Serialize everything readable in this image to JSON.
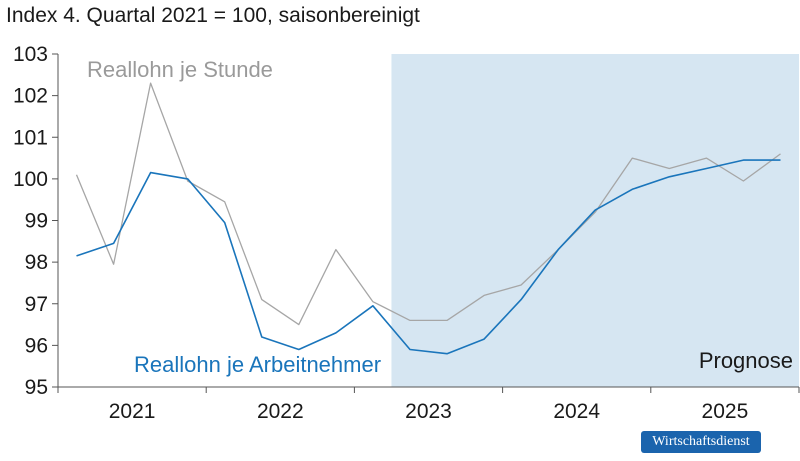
{
  "chart_data": {
    "type": "line",
    "subtitle": "Index 4. Quartal 2021 = 100, saisonbereinigt",
    "ylim": [
      95,
      103
    ],
    "yticks": [
      95,
      96,
      97,
      98,
      99,
      100,
      101,
      102,
      103
    ],
    "year_labels": [
      "2021",
      "2022",
      "2023",
      "2024",
      "2025"
    ],
    "x": [
      "2021 Q1",
      "2021 Q2",
      "2021 Q3",
      "2021 Q4",
      "2022 Q1",
      "2022 Q2",
      "2022 Q3",
      "2022 Q4",
      "2023 Q1",
      "2023 Q2",
      "2023 Q3",
      "2023 Q4",
      "2024 Q1",
      "2024 Q2",
      "2024 Q3",
      "2024 Q4",
      "2025 Q1",
      "2025 Q2",
      "2025 Q3",
      "2025 Q4"
    ],
    "series": [
      {
        "name": "Reallohn je Stunde",
        "color": "#a6a6a6",
        "values": [
          100.1,
          97.95,
          102.3,
          99.95,
          99.45,
          97.1,
          96.5,
          98.3,
          97.05,
          96.6,
          96.6,
          97.2,
          97.45,
          98.3,
          99.2,
          100.5,
          100.25,
          100.5,
          99.95,
          100.6
        ]
      },
      {
        "name": "Reallohn je Arbeitnehmer",
        "color": "#1a75bb",
        "values": [
          98.15,
          98.45,
          100.15,
          100.0,
          98.95,
          96.2,
          95.9,
          96.3,
          96.95,
          95.9,
          95.8,
          96.15,
          97.1,
          98.3,
          99.25,
          99.75,
          100.05,
          100.25,
          100.45,
          100.45
        ]
      }
    ],
    "shaded_region": {
      "label": "Prognose",
      "from": "2023 Q2",
      "to": "2025 Q4",
      "color": "#d6e6f2"
    },
    "grid": false
  },
  "brand": "Wirtschaftsdienst"
}
